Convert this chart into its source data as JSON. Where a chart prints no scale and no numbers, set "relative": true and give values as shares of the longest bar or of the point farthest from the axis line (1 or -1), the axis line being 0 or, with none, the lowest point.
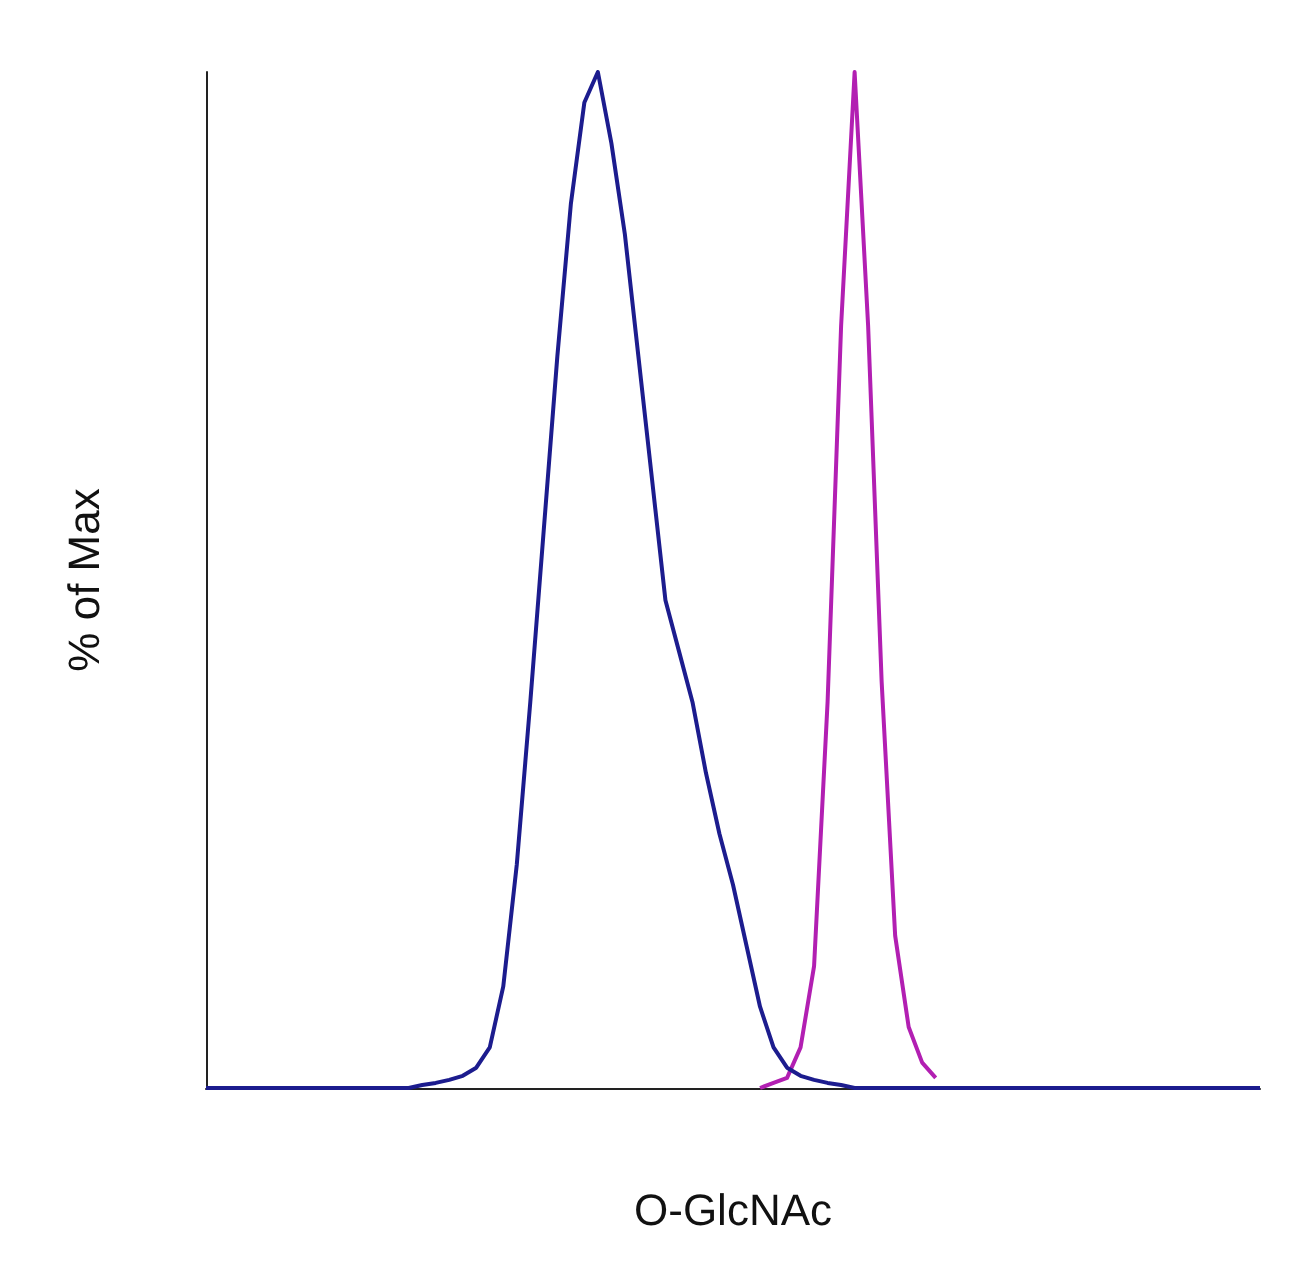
{
  "chart_data": {
    "type": "line",
    "xlabel": "O-GlcNAc",
    "ylabel": "% of Max",
    "relative": true,
    "grid": false,
    "marker": "none",
    "line_style": "solid",
    "categories": [
      null,
      null,
      null,
      null,
      null,
      null,
      null,
      null,
      null,
      null,
      null,
      null,
      null,
      null,
      null,
      null,
      null,
      null,
      null,
      null,
      null,
      null,
      null,
      null,
      null,
      null,
      null,
      null,
      null,
      null,
      null,
      null,
      null,
      null,
      null,
      null,
      null,
      null,
      null,
      null,
      null,
      null,
      null,
      null,
      null,
      null,
      null,
      null,
      null,
      null,
      null,
      null,
      null,
      null,
      null,
      null,
      null,
      null,
      null,
      null,
      null,
      null,
      null,
      null,
      null,
      null,
      null,
      null,
      null,
      null,
      null,
      null,
      null,
      null,
      null,
      null,
      null,
      null,
      null
    ],
    "series": [
      {
        "color": "#1c1c8e",
        "values": [
          0,
          0,
          0,
          0,
          0,
          0,
          0,
          0,
          0,
          0,
          0,
          0,
          0,
          0,
          0,
          0,
          0.003,
          0.005,
          0.008,
          0.012,
          0.02,
          0.04,
          0.1,
          0.22,
          0.38,
          0.55,
          0.72,
          0.87,
          0.97,
          1,
          0.93,
          0.84,
          0.72,
          0.6,
          0.48,
          0.43,
          0.38,
          0.31,
          0.25,
          0.2,
          0.14,
          0.08,
          0.04,
          0.02,
          0.012,
          0.008,
          0.005,
          0.003,
          0,
          0,
          0,
          0,
          0,
          0,
          0,
          0,
          0,
          0,
          0,
          0,
          0,
          0,
          0,
          0,
          0,
          0,
          0,
          0,
          0,
          0,
          0,
          0,
          0,
          0,
          0,
          0,
          0,
          0,
          0
        ]
      },
      {
        "color": "#b21fb2",
        "values": [
          null,
          null,
          null,
          null,
          null,
          null,
          null,
          null,
          null,
          null,
          null,
          null,
          null,
          null,
          null,
          null,
          null,
          null,
          null,
          null,
          null,
          null,
          null,
          null,
          null,
          null,
          null,
          null,
          null,
          null,
          null,
          null,
          null,
          null,
          null,
          null,
          null,
          null,
          null,
          null,
          null,
          0,
          0.005,
          0.01,
          0.04,
          0.12,
          0.38,
          0.75,
          1,
          0.75,
          0.4,
          0.15,
          0.06,
          0.025,
          0.01,
          null,
          null,
          null,
          null,
          null,
          null,
          null,
          null,
          null,
          null,
          null,
          null,
          null,
          null,
          null,
          null,
          null,
          null,
          null,
          null,
          null,
          null,
          null,
          null
        ]
      }
    ]
  }
}
